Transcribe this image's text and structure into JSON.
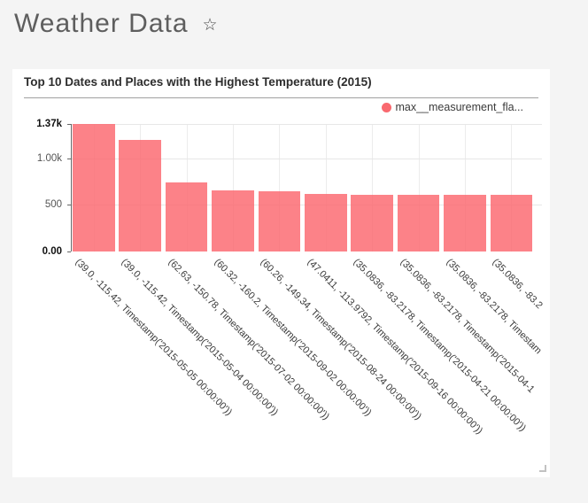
{
  "header": {
    "title": "Weather Data",
    "star_glyph": "☆"
  },
  "card": {
    "title": "Top 10 Dates and Places with the Highest Temperature (2015)",
    "legend": {
      "label": "max__measurement_fla...",
      "dot_color": "#f9696f"
    }
  },
  "colors": {
    "page_bg": "#f4f4f4",
    "card_bg": "#ffffff",
    "bar_fill": "rgba(251,103,110,0.82)",
    "h_grid": "#e7e7e7",
    "v_grid": "#ececec",
    "axis": "#666666"
  },
  "chart_data": {
    "type": "bar",
    "title": "Top 10 Dates and Places with the Highest Temperature (2015)",
    "legend_entries": [
      "max__measurement_fla..."
    ],
    "legend_position": "top-right",
    "grid": true,
    "xlabel": "",
    "ylabel": "",
    "ylim": [
      0,
      1370
    ],
    "yticks": [
      {
        "label": "1.37k",
        "value": 1370,
        "bold": true
      },
      {
        "label": "1.00k",
        "value": 1000,
        "bold": false
      },
      {
        "label": "500",
        "value": 500,
        "bold": false
      },
      {
        "label": "0.00",
        "value": 0,
        "bold": true
      }
    ],
    "categories": [
      "(39.0, -115.42, Timestamp('2015-05-05 00:00:00'))",
      "(39.0, -115.42, Timestamp('2015-05-04 00:00:00'))",
      "(62.63, -150.78, Timestamp('2015-07-02 00:00:00'))",
      "(60.32, -160.2, Timestamp('2015-09-02 00:00:00'))",
      "(60.26, -149.34, Timestamp('2015-08-24 00:00:00'))",
      "(47.0411, -113.9792, Timestamp('2015-09-16 00:00:00'))",
      "(35.0836, -83.2178, Timestamp('2015-04-21 00:00:00'))",
      "(35.0836, -83.2178, Timestamp('2015-04-1",
      "(35.0836, -83.2178, Timestam",
      "(35.0836, -83.2"
    ],
    "values": [
      1370,
      1200,
      740,
      655,
      650,
      615,
      610,
      610,
      610,
      610
    ]
  }
}
